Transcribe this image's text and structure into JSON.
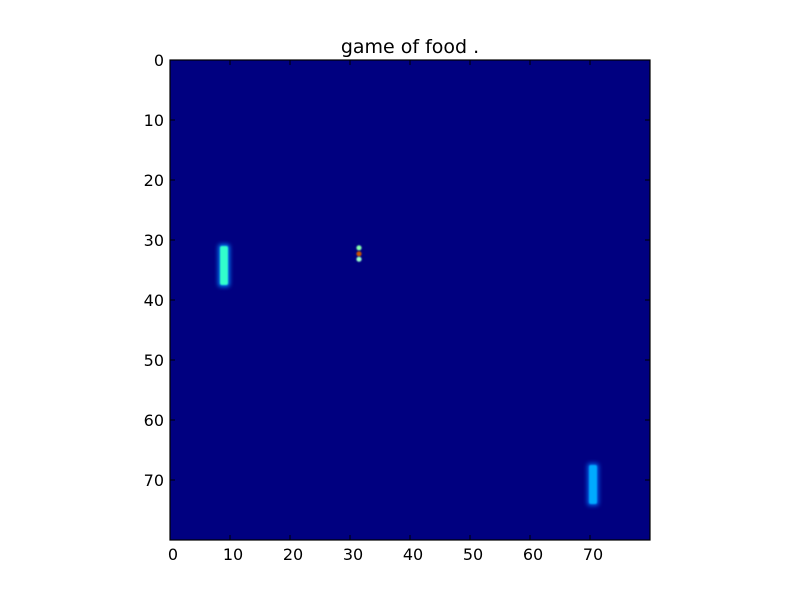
{
  "title": "game of food .",
  "colors": {
    "background": "#000080",
    "frame": "#000000",
    "paddle_left": "#33ffcc",
    "paddle_left_glow": "#0088ff",
    "paddle_right": "#00aaff",
    "paddle_right_glow": "#0066ee",
    "ball_top": "#88ffaa",
    "ball_mid": "#cc5500",
    "ball_bottom": "#99ffcc"
  },
  "chart_data": {
    "type": "heatmap",
    "title": "game of food .",
    "xlim": [
      0,
      80
    ],
    "ylim": [
      80,
      0
    ],
    "x_ticks": [
      0,
      10,
      20,
      30,
      40,
      50,
      60,
      70
    ],
    "y_ticks": [
      0,
      10,
      20,
      30,
      40,
      50,
      60,
      70
    ],
    "grid": false,
    "objects": [
      {
        "kind": "paddle",
        "x": 9,
        "y_start": 31,
        "y_end": 37.5,
        "color": "#33ffcc"
      },
      {
        "kind": "paddle",
        "x": 70.5,
        "y_start": 67.5,
        "y_end": 74,
        "color": "#00aaff"
      },
      {
        "kind": "food",
        "x": 31.5,
        "y": 31.3,
        "color": "#88ffaa"
      },
      {
        "kind": "food",
        "x": 31.5,
        "y": 32.3,
        "color": "#cc5500"
      },
      {
        "kind": "food",
        "x": 31.5,
        "y": 33.2,
        "color": "#99ffcc"
      }
    ]
  }
}
